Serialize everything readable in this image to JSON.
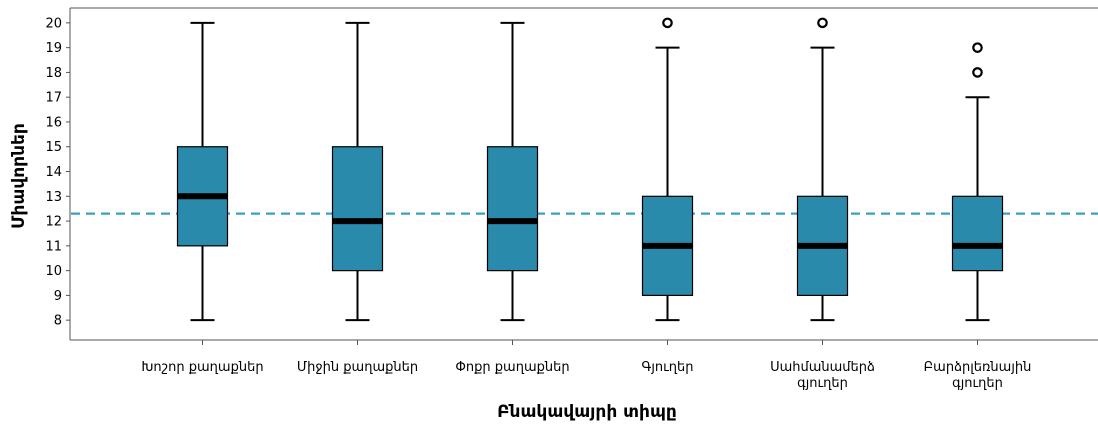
{
  "chart_data": {
    "type": "boxplot",
    "xlabel": "Բնակավայրի տիպը",
    "ylabel": "Միավորներ",
    "ylim": [
      7.2,
      20.6
    ],
    "yticks": [
      8,
      9,
      10,
      11,
      12,
      13,
      14,
      15,
      16,
      17,
      18,
      19,
      20
    ],
    "reference_line": {
      "y": 12.3,
      "style": "dashed",
      "color": "#3aa0c0"
    },
    "box_color": "#2a8aab",
    "median_color": "#000000",
    "grid": false,
    "categories": [
      [
        "Խոշոր քաղաքներ"
      ],
      [
        "Միջին քաղաքներ"
      ],
      [
        "Փոքր քաղաքներ"
      ],
      [
        "Գյուղեր"
      ],
      [
        "Սահմանամերձ",
        "գյուղեր"
      ],
      [
        "Բարձրլեռնային",
        "գյուղեր"
      ]
    ],
    "boxes": [
      {
        "whisker_low": 8,
        "q1": 11,
        "median": 13,
        "q3": 15,
        "whisker_high": 20,
        "outliers": []
      },
      {
        "whisker_low": 8,
        "q1": 10,
        "median": 12,
        "q3": 15,
        "whisker_high": 20,
        "outliers": []
      },
      {
        "whisker_low": 8,
        "q1": 10,
        "median": 12,
        "q3": 15,
        "whisker_high": 20,
        "outliers": []
      },
      {
        "whisker_low": 8,
        "q1": 9,
        "median": 11,
        "q3": 13,
        "whisker_high": 19,
        "outliers": [
          20
        ]
      },
      {
        "whisker_low": 8,
        "q1": 9,
        "median": 11,
        "q3": 13,
        "whisker_high": 19,
        "outliers": [
          20
        ]
      },
      {
        "whisker_low": 8,
        "q1": 10,
        "median": 11,
        "q3": 13,
        "whisker_high": 17,
        "outliers": [
          18,
          19
        ]
      }
    ]
  }
}
